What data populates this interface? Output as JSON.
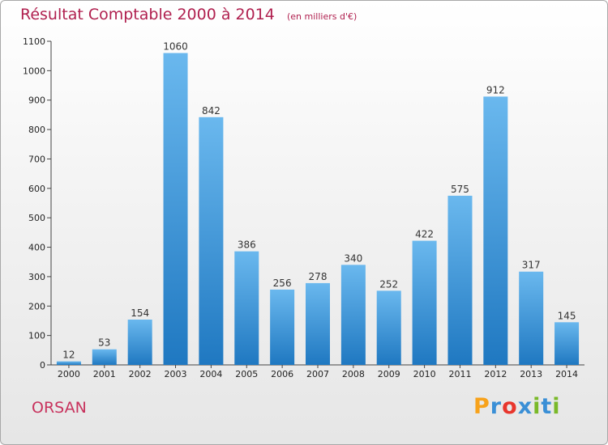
{
  "title": {
    "main": "Résultat Comptable 2000 à 2014",
    "unit": "(en milliers d'€)"
  },
  "commune": "ORSAN",
  "logo": {
    "letters": [
      "P",
      "r",
      "o",
      "x",
      "i",
      "t",
      "i"
    ],
    "colors": [
      "#f7a21b",
      "#3a8fd6",
      "#e8362d",
      "#3a8fd6",
      "#7ab929",
      "#3a8fd6",
      "#7ab929"
    ]
  },
  "colors": {
    "bar_light": "#6ab8ee",
    "bar_dark": "#1f78c1",
    "title": "#b0204f"
  },
  "chart_data": {
    "type": "bar",
    "categories": [
      "2000",
      "2001",
      "2002",
      "2003",
      "2004",
      "2005",
      "2006",
      "2007",
      "2008",
      "2009",
      "2010",
      "2011",
      "2012",
      "2013",
      "2014"
    ],
    "values": [
      12,
      53,
      154,
      1060,
      842,
      386,
      256,
      278,
      340,
      252,
      422,
      575,
      912,
      317,
      145
    ],
    "title": "Résultat Comptable 2000 à 2014",
    "ylim": [
      0,
      1100
    ],
    "yticks": [
      0,
      100,
      200,
      300,
      400,
      500,
      600,
      700,
      800,
      900,
      1000,
      1100
    ],
    "grid": false
  }
}
